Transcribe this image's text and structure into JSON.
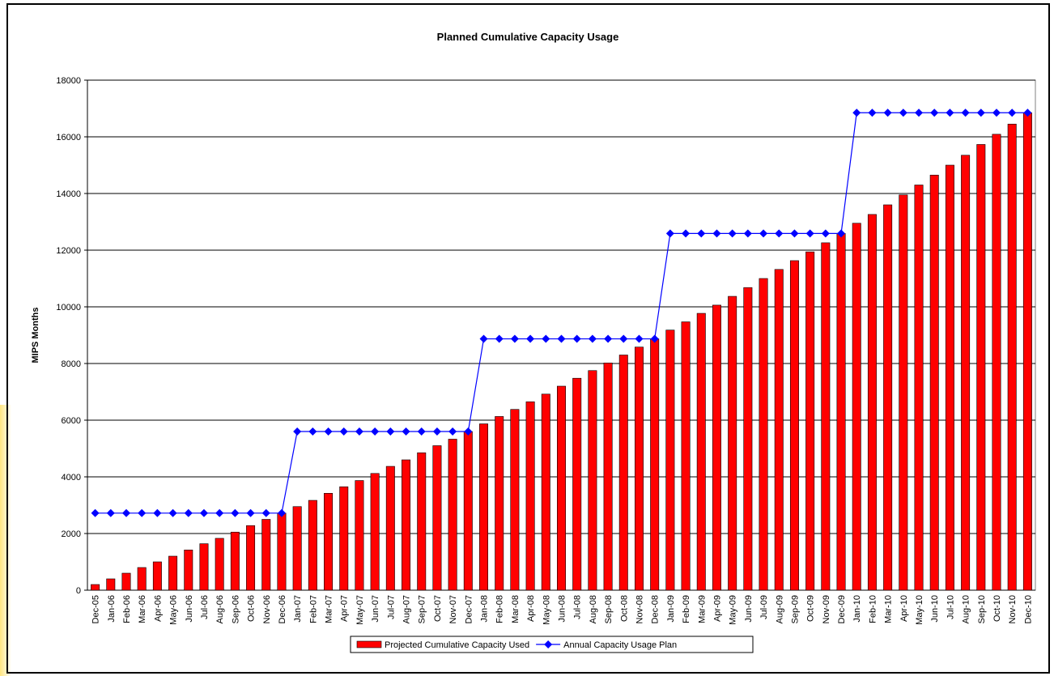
{
  "chart_data": {
    "type": "bar-line",
    "title": "Planned Cumulative Capacity Usage",
    "y_label": "MIPS Months",
    "categories": [
      "Dec-05",
      "Jan-06",
      "Feb-06",
      "Mar-06",
      "Apr-06",
      "May-06",
      "Jun-06",
      "Jul-06",
      "Aug-06",
      "Sep-06",
      "Oct-06",
      "Nov-06",
      "Dec-06",
      "Jan-07",
      "Feb-07",
      "Mar-07",
      "Apr-07",
      "May-07",
      "Jun-07",
      "Jul-07",
      "Aug-07",
      "Sep-07",
      "Oct-07",
      "Nov-07",
      "Dec-07",
      "Jan-08",
      "Feb-08",
      "Mar-08",
      "Apr-08",
      "May-08",
      "Jun-08",
      "Jul-08",
      "Aug-08",
      "Sep-08",
      "Oct-08",
      "Nov-08",
      "Dec-08",
      "Jan-09",
      "Feb-09",
      "Mar-09",
      "Apr-09",
      "May-09",
      "Jun-09",
      "Jul-09",
      "Aug-09",
      "Sep-09",
      "Oct-09",
      "Nov-09",
      "Dec-09",
      "Jan-10",
      "Feb-10",
      "Mar-10",
      "Apr-10",
      "May-10",
      "Jun-10",
      "Jul-10",
      "Aug-10",
      "Sep-10",
      "Oct-10",
      "Nov-10",
      "Dec-10"
    ],
    "series": [
      {
        "name": "Projected Cumulative Capacity Used",
        "type": "bar",
        "color": "#ff0000",
        "values": [
          200,
          400,
          600,
          800,
          1000,
          1200,
          1420,
          1640,
          1830,
          2050,
          2280,
          2500,
          2720,
          2950,
          3170,
          3420,
          3650,
          3870,
          4120,
          4370,
          4600,
          4850,
          5100,
          5330,
          5600,
          5870,
          6130,
          6380,
          6650,
          6920,
          7200,
          7480,
          7750,
          8020,
          8300,
          8580,
          8870,
          9180,
          9470,
          9770,
          10060,
          10370,
          10680,
          11000,
          11320,
          11630,
          11940,
          12260,
          12590,
          12950,
          13260,
          13600,
          13950,
          14300,
          14650,
          15000,
          15350,
          15730,
          16090,
          16450,
          16850
        ]
      },
      {
        "name": "Annual Capacity Usage Plan",
        "type": "line",
        "color": "#0000ff",
        "values": [
          2720,
          2720,
          2720,
          2720,
          2720,
          2720,
          2720,
          2720,
          2720,
          2720,
          2720,
          2720,
          2720,
          5600,
          5600,
          5600,
          5600,
          5600,
          5600,
          5600,
          5600,
          5600,
          5600,
          5600,
          5600,
          8870,
          8870,
          8870,
          8870,
          8870,
          8870,
          8870,
          8870,
          8870,
          8870,
          8870,
          8870,
          12590,
          12590,
          12590,
          12590,
          12590,
          12590,
          12590,
          12590,
          12590,
          12590,
          12590,
          12590,
          16850,
          16850,
          16850,
          16850,
          16850,
          16850,
          16850,
          16850,
          16850,
          16850,
          16850,
          16850
        ]
      }
    ],
    "ylim": [
      0,
      18000
    ],
    "yticks": [
      0,
      2000,
      4000,
      6000,
      8000,
      10000,
      12000,
      14000,
      16000,
      18000
    ],
    "grid": true,
    "legend": "bottom"
  }
}
